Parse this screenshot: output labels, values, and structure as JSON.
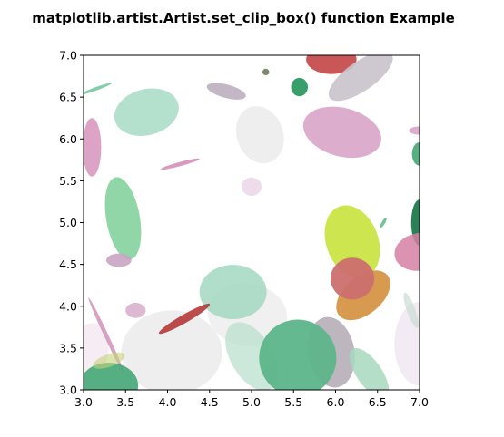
{
  "chart_data": {
    "type": "scatter",
    "mark": "ellipse",
    "title": "matplotlib.artist.Artist.set_clip_box() function Example",
    "xlabel": "",
    "ylabel": "",
    "xlim": [
      3.0,
      7.0
    ],
    "ylim": [
      3.0,
      7.0
    ],
    "xticks": [
      "3.0",
      "3.5",
      "4.0",
      "4.5",
      "5.0",
      "5.5",
      "6.0",
      "6.5",
      "7.0"
    ],
    "yticks": [
      "3.0",
      "3.5",
      "4.0",
      "4.5",
      "5.0",
      "5.5",
      "6.0",
      "6.5",
      "7.0"
    ],
    "grid": false,
    "legend": "none",
    "ellipses": [
      {
        "cx": 4.05,
        "cy": 3.45,
        "w": 1.2,
        "h": 1.0,
        "angle": 0,
        "color": "#ecebeb",
        "alpha": 0.85
      },
      {
        "cx": 4.95,
        "cy": 3.9,
        "w": 0.95,
        "h": 0.75,
        "angle": -10,
        "color": "#efeeee",
        "alpha": 0.9
      },
      {
        "cx": 5.1,
        "cy": 6.05,
        "w": 0.55,
        "h": 0.7,
        "angle": 20,
        "color": "#ecebeb",
        "alpha": 0.85
      },
      {
        "cx": 7.0,
        "cy": 3.55,
        "w": 0.6,
        "h": 1.0,
        "angle": 0,
        "color": "#f0e6f0",
        "alpha": 0.8
      },
      {
        "cx": 3.1,
        "cy": 3.5,
        "w": 0.4,
        "h": 0.6,
        "angle": 0,
        "color": "#f2e4ee",
        "alpha": 0.7
      },
      {
        "cx": 5.45,
        "cy": 3.2,
        "w": 0.6,
        "h": 0.4,
        "angle": 0,
        "color": "#f2eef2",
        "alpha": 0.8
      },
      {
        "cx": 5.0,
        "cy": 5.43,
        "w": 0.24,
        "h": 0.22,
        "angle": 0,
        "color": "#ead6e6",
        "alpha": 0.85
      },
      {
        "cx": 5.95,
        "cy": 6.95,
        "w": 0.6,
        "h": 0.35,
        "angle": 0,
        "color": "#c0393b",
        "alpha": 0.85
      },
      {
        "cx": 6.3,
        "cy": 6.75,
        "w": 0.9,
        "h": 0.35,
        "angle": 35,
        "color": "#c9c3cb",
        "alpha": 0.9
      },
      {
        "cx": 5.17,
        "cy": 6.8,
        "w": 0.08,
        "h": 0.08,
        "angle": 0,
        "color": "#7c8a6c",
        "alpha": 1.0
      },
      {
        "cx": 5.57,
        "cy": 6.62,
        "w": 0.2,
        "h": 0.22,
        "angle": 0,
        "color": "#2d9a63",
        "alpha": 0.95
      },
      {
        "cx": 4.7,
        "cy": 6.57,
        "w": 0.48,
        "h": 0.16,
        "angle": -15,
        "color": "#bcaebf",
        "alpha": 0.9
      },
      {
        "cx": 3.75,
        "cy": 6.32,
        "w": 0.78,
        "h": 0.55,
        "angle": 15,
        "color": "#a7dbc6",
        "alpha": 0.85
      },
      {
        "cx": 3.15,
        "cy": 6.6,
        "w": 0.4,
        "h": 0.04,
        "angle": 20,
        "color": "#78c6a0",
        "alpha": 0.9
      },
      {
        "cx": 6.08,
        "cy": 6.08,
        "w": 0.95,
        "h": 0.58,
        "angle": -15,
        "color": "#d8a4c8",
        "alpha": 0.9
      },
      {
        "cx": 3.1,
        "cy": 5.9,
        "w": 0.22,
        "h": 0.7,
        "angle": 0,
        "color": "#d899c0",
        "alpha": 0.9
      },
      {
        "cx": 7.0,
        "cy": 6.1,
        "w": 0.25,
        "h": 0.1,
        "angle": 0,
        "color": "#d8a4c8",
        "alpha": 0.9
      },
      {
        "cx": 7.0,
        "cy": 5.82,
        "w": 0.18,
        "h": 0.28,
        "angle": 0,
        "color": "#4daa7c",
        "alpha": 0.95
      },
      {
        "cx": 4.15,
        "cy": 5.7,
        "w": 0.48,
        "h": 0.05,
        "angle": 15,
        "color": "#d68fb8",
        "alpha": 0.9
      },
      {
        "cx": 3.47,
        "cy": 5.05,
        "w": 0.4,
        "h": 1.0,
        "angle": 10,
        "color": "#7ccf98",
        "alpha": 0.85
      },
      {
        "cx": 7.0,
        "cy": 5.0,
        "w": 0.2,
        "h": 0.55,
        "angle": 0,
        "color": "#1e7a4c",
        "alpha": 0.95
      },
      {
        "cx": 6.2,
        "cy": 4.77,
        "w": 0.62,
        "h": 0.9,
        "angle": 20,
        "color": "#c8e23c",
        "alpha": 0.9
      },
      {
        "cx": 6.57,
        "cy": 5.0,
        "w": 0.04,
        "h": 0.14,
        "angle": -30,
        "color": "#5cc08e",
        "alpha": 0.9
      },
      {
        "cx": 7.0,
        "cy": 4.65,
        "w": 0.6,
        "h": 0.45,
        "angle": 10,
        "color": "#d67fa3",
        "alpha": 0.85
      },
      {
        "cx": 3.42,
        "cy": 4.55,
        "w": 0.3,
        "h": 0.16,
        "angle": 0,
        "color": "#c9a4c2",
        "alpha": 0.9
      },
      {
        "cx": 4.78,
        "cy": 4.17,
        "w": 0.8,
        "h": 0.65,
        "angle": 0,
        "color": "#a3d8c2",
        "alpha": 0.85
      },
      {
        "cx": 6.33,
        "cy": 4.13,
        "w": 0.75,
        "h": 0.45,
        "angle": 40,
        "color": "#d08830",
        "alpha": 0.85
      },
      {
        "cx": 6.2,
        "cy": 4.33,
        "w": 0.52,
        "h": 0.5,
        "angle": 0,
        "color": "#cc6f6f",
        "alpha": 0.95
      },
      {
        "cx": 4.2,
        "cy": 3.85,
        "w": 0.7,
        "h": 0.1,
        "angle": 30,
        "color": "#b22e2e",
        "alpha": 0.85
      },
      {
        "cx": 3.62,
        "cy": 3.95,
        "w": 0.24,
        "h": 0.18,
        "angle": 0,
        "color": "#d8b0cc",
        "alpha": 0.9
      },
      {
        "cx": 3.27,
        "cy": 3.65,
        "w": 0.05,
        "h": 1.0,
        "angle": 25,
        "color": "#d299bd",
        "alpha": 0.9
      },
      {
        "cx": 5.0,
        "cy": 3.4,
        "w": 0.5,
        "h": 0.9,
        "angle": 30,
        "color": "#b9e0cd",
        "alpha": 0.75
      },
      {
        "cx": 5.95,
        "cy": 3.45,
        "w": 0.55,
        "h": 0.85,
        "angle": 10,
        "color": "#b2a9b4",
        "alpha": 0.85
      },
      {
        "cx": 5.55,
        "cy": 3.38,
        "w": 0.92,
        "h": 0.92,
        "angle": 0,
        "color": "#5db58a",
        "alpha": 0.95
      },
      {
        "cx": 6.4,
        "cy": 3.2,
        "w": 0.3,
        "h": 0.7,
        "angle": 35,
        "color": "#a8d8be",
        "alpha": 0.85
      },
      {
        "cx": 3.3,
        "cy": 3.05,
        "w": 0.7,
        "h": 0.55,
        "angle": 0,
        "color": "#4daa7c",
        "alpha": 0.95
      },
      {
        "cx": 3.3,
        "cy": 3.35,
        "w": 0.4,
        "h": 0.15,
        "angle": 20,
        "color": "#c5d27a",
        "alpha": 0.6
      },
      {
        "cx": 6.9,
        "cy": 3.95,
        "w": 0.1,
        "h": 0.45,
        "angle": 20,
        "color": "#c9ddd3",
        "alpha": 0.7
      }
    ]
  }
}
